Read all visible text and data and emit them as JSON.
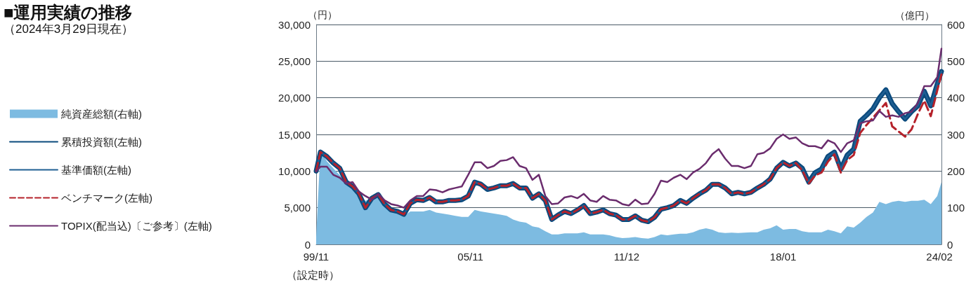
{
  "chart_data": {
    "type": "line",
    "title": "■運用実績の推移",
    "subtitle": "（2024年3月29日現在）",
    "ylabel": "（円）",
    "y2label": "（億円）",
    "annotations": [
      "（設定時）"
    ],
    "x": [
      "1999-11",
      "2000-01",
      "2000-04",
      "2000-07",
      "2000-10",
      "2001-01",
      "2001-04",
      "2001-07",
      "2001-10",
      "2002-01",
      "2002-04",
      "2002-07",
      "2002-10",
      "2003-01",
      "2003-04",
      "2003-07",
      "2003-10",
      "2004-01",
      "2004-04",
      "2004-07",
      "2004-10",
      "2005-01",
      "2005-04",
      "2005-07",
      "2005-10",
      "2006-01",
      "2006-04",
      "2006-07",
      "2006-10",
      "2007-01",
      "2007-04",
      "2007-07",
      "2007-10",
      "2008-01",
      "2008-04",
      "2008-07",
      "2008-10",
      "2009-01",
      "2009-04",
      "2009-07",
      "2009-10",
      "2010-01",
      "2010-04",
      "2010-07",
      "2010-10",
      "2011-01",
      "2011-04",
      "2011-07",
      "2011-10",
      "2012-01",
      "2012-04",
      "2012-07",
      "2012-10",
      "2013-01",
      "2013-04",
      "2013-07",
      "2013-10",
      "2014-01",
      "2014-04",
      "2014-07",
      "2014-10",
      "2015-01",
      "2015-04",
      "2015-07",
      "2015-10",
      "2016-01",
      "2016-04",
      "2016-07",
      "2016-10",
      "2017-01",
      "2017-04",
      "2017-07",
      "2017-10",
      "2018-01",
      "2018-04",
      "2018-07",
      "2018-10",
      "2019-01",
      "2019-04",
      "2019-07",
      "2019-10",
      "2020-01",
      "2020-04",
      "2020-07",
      "2020-10",
      "2021-01",
      "2021-04",
      "2021-07",
      "2021-10",
      "2022-01",
      "2022-04",
      "2022-07",
      "2022-10",
      "2023-01",
      "2023-04",
      "2023-07",
      "2023-10",
      "2024-01",
      "2024-03"
    ],
    "series": [
      {
        "name": "純資産総額(右軸)",
        "type": "area",
        "axis": "y2",
        "color": "#7dbbe1",
        "values": [
          20,
          260,
          227,
          208,
          189,
          164,
          154,
          132,
          119,
          126,
          135,
          110,
          94,
          87,
          78,
          90,
          90,
          90,
          94,
          87,
          84,
          81,
          78,
          75,
          75,
          94,
          90,
          87,
          84,
          81,
          78,
          68,
          62,
          59,
          49,
          46,
          36,
          27,
          27,
          30,
          30,
          30,
          33,
          27,
          27,
          27,
          25,
          20,
          17,
          18,
          20,
          17,
          16,
          20,
          27,
          25,
          27,
          29,
          29,
          33,
          40,
          44,
          40,
          33,
          31,
          32,
          31,
          32,
          33,
          33,
          40,
          44,
          52,
          40,
          42,
          42,
          36,
          33,
          33,
          33,
          40,
          36,
          30,
          49,
          46,
          59,
          75,
          87,
          116,
          110,
          116,
          119,
          116,
          119,
          119,
          122,
          110,
          132,
          170
        ]
      },
      {
        "name": "累積投資額(左軸)",
        "type": "line",
        "color": "#0b4a7d",
        "line_style": "solid",
        "values": [
          10000,
          12600,
          12000,
          11100,
          10400,
          8500,
          7900,
          6900,
          5000,
          6300,
          6800,
          5500,
          4700,
          4500,
          4100,
          5600,
          6100,
          6000,
          6400,
          5800,
          5800,
          6000,
          6000,
          6100,
          6600,
          8500,
          8200,
          7500,
          7700,
          8000,
          8000,
          8300,
          7700,
          7700,
          6300,
          6900,
          6000,
          3400,
          4000,
          4500,
          4200,
          4700,
          5300,
          4200,
          4400,
          4700,
          4200,
          4000,
          3400,
          3400,
          3900,
          3300,
          3100,
          3700,
          4800,
          5000,
          5300,
          6000,
          5600,
          6300,
          6900,
          7400,
          8200,
          8200,
          7700,
          6900,
          7100,
          6900,
          7100,
          7700,
          8200,
          8900,
          10400,
          11200,
          10700,
          11100,
          10400,
          8500,
          9800,
          10300,
          12000,
          12600,
          10300,
          12200,
          13000,
          16800,
          17600,
          18500,
          20000,
          21100,
          19200,
          18100,
          17100,
          18100,
          18900,
          20900,
          18900,
          21900,
          23600
        ]
      },
      {
        "name": "基準価額(左軸)",
        "type": "line",
        "color": "#1f5f93",
        "line_style": "solid",
        "values": [
          10000,
          12600,
          12000,
          11100,
          10400,
          8500,
          7900,
          6900,
          5000,
          6300,
          6800,
          5500,
          4700,
          4500,
          4100,
          5600,
          6100,
          6000,
          6400,
          5800,
          5800,
          6000,
          6000,
          6100,
          6600,
          8500,
          8200,
          7500,
          7700,
          8000,
          8000,
          8300,
          7700,
          7700,
          6300,
          6900,
          6000,
          3400,
          4000,
          4500,
          4200,
          4700,
          5300,
          4200,
          4400,
          4700,
          4200,
          4000,
          3400,
          3400,
          3900,
          3300,
          3100,
          3700,
          4800,
          5000,
          5300,
          6000,
          5600,
          6300,
          6900,
          7400,
          8200,
          8200,
          7700,
          6900,
          7100,
          6900,
          7100,
          7700,
          8200,
          8900,
          10400,
          11200,
          10700,
          11100,
          10400,
          8500,
          9800,
          10300,
          12000,
          12600,
          10300,
          12200,
          13000,
          16800,
          17600,
          18500,
          20000,
          21100,
          19200,
          18100,
          17100,
          18100,
          18900,
          20900,
          18900,
          21900,
          23600
        ]
      },
      {
        "name": "ベンチマーク(左軸)",
        "type": "line",
        "color": "#b5222b",
        "line_style": "dashed",
        "values": [
          10000,
          12600,
          12000,
          11100,
          10400,
          8500,
          7900,
          6900,
          5000,
          6300,
          6800,
          5500,
          4700,
          4500,
          4100,
          5600,
          6100,
          6000,
          6400,
          5800,
          5800,
          6000,
          6000,
          6100,
          6600,
          8500,
          8200,
          7500,
          7700,
          8000,
          8000,
          8300,
          7700,
          7700,
          6300,
          6900,
          6000,
          3400,
          4000,
          4500,
          4200,
          4700,
          5300,
          4200,
          4400,
          4700,
          4200,
          4000,
          3400,
          3400,
          3900,
          3300,
          3100,
          3700,
          4800,
          5000,
          5300,
          6000,
          5600,
          6300,
          6900,
          7400,
          8200,
          8200,
          7700,
          6900,
          7100,
          6900,
          7100,
          7700,
          8200,
          8900,
          10400,
          11200,
          10700,
          11100,
          10100,
          8300,
          9400,
          9800,
          11300,
          12300,
          9800,
          11500,
          12200,
          15200,
          16300,
          17300,
          18300,
          19300,
          16100,
          15400,
          14700,
          15700,
          17800,
          19600,
          17500,
          21000,
          23200
        ]
      },
      {
        "name": "TOPIX(配当込)〔ご参考〕(左軸)",
        "type": "line",
        "color": "#6b2d6e",
        "line_style": "solid",
        "values": [
          10000,
          10600,
          10600,
          9500,
          9100,
          8300,
          8500,
          7200,
          6600,
          6100,
          6900,
          6000,
          5500,
          5300,
          5000,
          6000,
          6600,
          6600,
          7500,
          7400,
          7100,
          7500,
          7700,
          7900,
          9500,
          11200,
          11200,
          10400,
          10700,
          11400,
          11500,
          11900,
          10700,
          10400,
          8800,
          9500,
          6600,
          5500,
          5600,
          6400,
          6600,
          6300,
          6900,
          6000,
          5800,
          6600,
          6100,
          6000,
          5500,
          5300,
          6100,
          5500,
          5600,
          6900,
          8700,
          8500,
          9100,
          9500,
          8900,
          9800,
          10300,
          11100,
          12300,
          13000,
          11700,
          10700,
          10700,
          10400,
          10700,
          12300,
          12500,
          13100,
          14400,
          15000,
          14400,
          14600,
          13800,
          13400,
          13400,
          13100,
          14200,
          13800,
          12600,
          13800,
          14200,
          16500,
          16800,
          16900,
          18200,
          17400,
          17600,
          17400,
          17900,
          18100,
          19300,
          21600,
          21600,
          22800,
          26700
        ]
      }
    ],
    "xlim": [
      "1999-11",
      "2024-03"
    ],
    "xticks": [
      {
        "value": "1999-11",
        "label": "99/11"
      },
      {
        "value": "2005-11",
        "label": "05/11"
      },
      {
        "value": "2011-12",
        "label": "11/12"
      },
      {
        "value": "2018-01",
        "label": "18/01"
      },
      {
        "value": "2024-02",
        "label": "24/02"
      }
    ],
    "ylim": [
      0,
      30000
    ],
    "yticks": [
      {
        "value": 0,
        "label": "0"
      },
      {
        "value": 5000,
        "label": "5,000"
      },
      {
        "value": 10000,
        "label": "10,000"
      },
      {
        "value": 15000,
        "label": "15,000"
      },
      {
        "value": 20000,
        "label": "20,000"
      },
      {
        "value": 25000,
        "label": "25,000"
      },
      {
        "value": 30000,
        "label": "30,000"
      }
    ],
    "y2lim": [
      0,
      600
    ],
    "y2ticks": [
      0,
      100,
      200,
      300,
      400,
      500,
      600
    ],
    "grid": "y",
    "legend": "left",
    "marker": "none"
  }
}
